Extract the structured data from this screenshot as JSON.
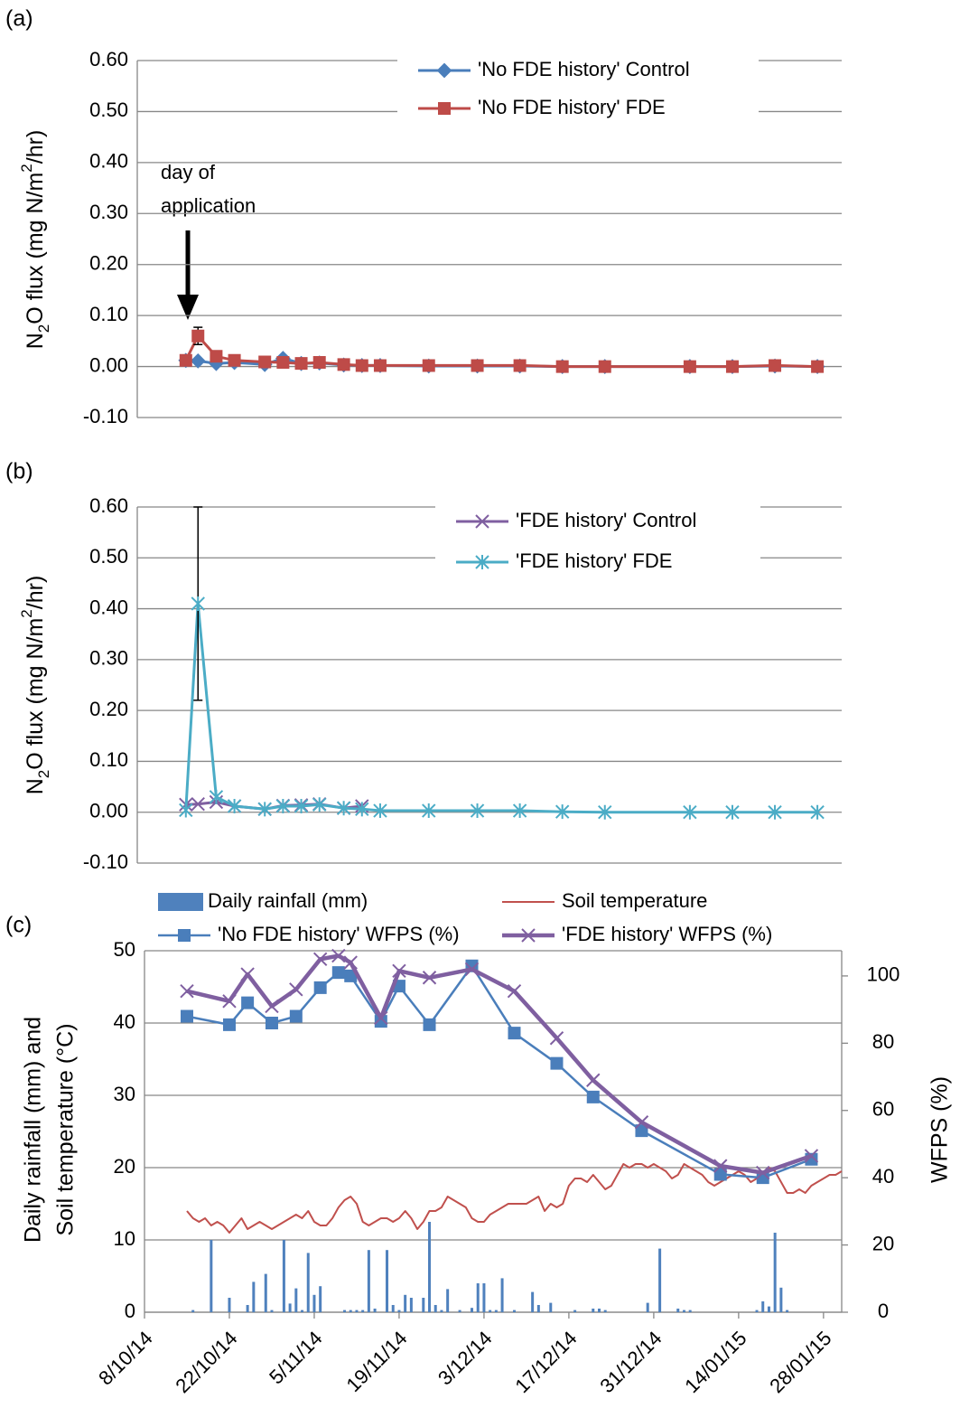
{
  "chart_data": [
    {
      "type": "line",
      "panel_label": "(a)",
      "ylabel": [
        "N",
        "2",
        "O flux  (mg N/m",
        "2",
        "/hr)"
      ],
      "annotation": [
        "day of",
        "application"
      ],
      "xlim": [
        "2014-10-07",
        "2015-01-31"
      ],
      "ylim": [
        -0.1,
        0.6
      ],
      "yticks": [
        {
          "value": -0.1,
          "label": "-0.10"
        },
        {
          "value": 0,
          "label": "0.00"
        },
        {
          "value": 0.1,
          "label": "0.10"
        },
        {
          "value": 0.2,
          "label": "0.20"
        },
        {
          "value": 0.3,
          "label": "0.30"
        },
        {
          "value": 0.4,
          "label": "0.40"
        },
        {
          "value": 0.5,
          "label": "0.50"
        },
        {
          "value": 0.6,
          "label": "0.60"
        }
      ],
      "grid": true,
      "legend": "upper right",
      "series": [
        {
          "name": "'No FDE history' Control",
          "color": "#4a7ebb",
          "marker": "diamond",
          "x": [
            "2014-10-15",
            "2014-10-17",
            "2014-10-20",
            "2014-10-23",
            "2014-10-28",
            "2014-10-31",
            "2014-11-03",
            "2014-11-06",
            "2014-11-10",
            "2014-11-13",
            "2014-11-16",
            "2014-11-24",
            "2014-12-02",
            "2014-12-09",
            "2014-12-16",
            "2014-12-23",
            "2015-01-06",
            "2015-01-13",
            "2015-01-20",
            "2015-01-27"
          ],
          "values": [
            0.012,
            0.011,
            0.006,
            0.008,
            0.004,
            0.016,
            0.006,
            0.007,
            0.003,
            0.002,
            0.002,
            0.001,
            0.001,
            0.001,
            0,
            0,
            0,
            0,
            0.001,
            0
          ]
        },
        {
          "name": "'No FDE history' FDE",
          "color": "#be4b48",
          "marker": "square",
          "x": [
            "2014-10-15",
            "2014-10-17",
            "2014-10-20",
            "2014-10-23",
            "2014-10-28",
            "2014-10-31",
            "2014-11-03",
            "2014-11-06",
            "2014-11-10",
            "2014-11-13",
            "2014-11-16",
            "2014-11-24",
            "2014-12-02",
            "2014-12-09",
            "2014-12-16",
            "2014-12-23",
            "2015-01-06",
            "2015-01-13",
            "2015-01-20",
            "2015-01-27"
          ],
          "values": [
            0.012,
            0.06,
            0.02,
            0.012,
            0.009,
            0.008,
            0.006,
            0.008,
            0.004,
            0.002,
            0.002,
            0.002,
            0.002,
            0.002,
            0,
            0,
            0,
            0,
            0.002,
            0
          ],
          "errors": [
            null,
            0.017,
            null,
            null,
            null,
            null,
            null,
            null,
            null,
            null,
            null,
            null,
            null,
            null,
            null,
            null,
            null,
            null,
            null,
            null
          ]
        }
      ]
    },
    {
      "type": "line",
      "panel_label": "(b)",
      "ylabel": [
        "N",
        "2",
        "O flux  (mg N/m",
        "2",
        "/hr)"
      ],
      "xlim": [
        "2014-10-07",
        "2015-01-31"
      ],
      "ylim": [
        -0.1,
        0.6
      ],
      "yticks": [
        {
          "value": -0.1,
          "label": "-0.10"
        },
        {
          "value": 0,
          "label": "0.00"
        },
        {
          "value": 0.1,
          "label": "0.10"
        },
        {
          "value": 0.2,
          "label": "0.20"
        },
        {
          "value": 0.3,
          "label": "0.30"
        },
        {
          "value": 0.4,
          "label": "0.40"
        },
        {
          "value": 0.5,
          "label": "0.50"
        },
        {
          "value": 0.6,
          "label": "0.60"
        }
      ],
      "grid": true,
      "legend": "upper right",
      "series": [
        {
          "name": "'FDE history' Control",
          "color": "#7f5fa0",
          "marker": "x",
          "x": [
            "2014-10-15",
            "2014-10-17",
            "2014-10-20",
            "2014-10-23",
            "2014-10-28",
            "2014-10-31",
            "2014-11-03",
            "2014-11-06",
            "2014-11-10",
            "2014-11-13",
            "2014-11-16",
            "2014-11-24",
            "2014-12-02",
            "2014-12-09",
            "2014-12-16",
            "2014-12-23",
            "2015-01-06",
            "2015-01-13",
            "2015-01-20",
            "2015-01-27"
          ],
          "values": [
            0.015,
            0.016,
            0.02,
            0.012,
            0.006,
            0.013,
            0.014,
            0.016,
            0.008,
            0.012,
            null,
            null,
            null,
            null,
            null,
            null,
            null,
            null,
            null,
            null
          ]
        },
        {
          "name": "'FDE history' FDE",
          "color": "#4bacc6",
          "marker": "star",
          "x": [
            "2014-10-15",
            "2014-10-17",
            "2014-10-20",
            "2014-10-23",
            "2014-10-28",
            "2014-10-31",
            "2014-11-03",
            "2014-11-06",
            "2014-11-10",
            "2014-11-13",
            "2014-11-16",
            "2014-11-24",
            "2014-12-02",
            "2014-12-09",
            "2014-12-16",
            "2014-12-23",
            "2015-01-06",
            "2015-01-13",
            "2015-01-20",
            "2015-01-27"
          ],
          "values": [
            0.004,
            0.41,
            0.03,
            0.012,
            0.006,
            0.012,
            0.012,
            0.015,
            0.008,
            0.006,
            0.003,
            0.003,
            0.003,
            0.003,
            0.001,
            0,
            0,
            0,
            0,
            0
          ],
          "errors": [
            null,
            0.19,
            null,
            null,
            null,
            null,
            null,
            null,
            null,
            null,
            null,
            null,
            null,
            null,
            null,
            null,
            null,
            null,
            null,
            null
          ]
        }
      ]
    },
    {
      "type": "combo",
      "panel_label": "(c)",
      "ylabel": [
        "Daily rainfall (mm) and",
        "Soil temperature (°C)"
      ],
      "y2label": "WFPS (%)",
      "xlim": [
        "2014-10-08",
        "2015-01-31"
      ],
      "xticks": [
        {
          "value": "2014-10-08",
          "label": "8/10/14"
        },
        {
          "value": "2014-10-22",
          "label": "22/10/14"
        },
        {
          "value": "2014-11-05",
          "label": "5/11/14"
        },
        {
          "value": "2014-11-19",
          "label": "19/11/14"
        },
        {
          "value": "2014-12-03",
          "label": "3/12/14"
        },
        {
          "value": "2014-12-17",
          "label": "17/12/14"
        },
        {
          "value": "2014-12-31",
          "label": "31/12/14"
        },
        {
          "value": "2015-01-14",
          "label": "14/01/15"
        },
        {
          "value": "2015-01-28",
          "label": "28/01/15"
        }
      ],
      "ylim": [
        0,
        50
      ],
      "yticks": [
        0,
        10,
        20,
        30,
        40,
        50
      ],
      "y2lim": [
        0,
        107.5
      ],
      "y2ticks": [
        0,
        20,
        40,
        60,
        80,
        100
      ],
      "grid": true,
      "legend": "top",
      "series": [
        {
          "name": "Daily rainfall (mm)",
          "type": "bar",
          "color": "#4f81bd",
          "x": [
            "2014-10-16",
            "2014-10-19",
            "2014-10-22",
            "2014-10-25",
            "2014-10-26",
            "2014-10-28",
            "2014-10-29",
            "2014-10-31",
            "2014-11-01",
            "2014-11-02",
            "2014-11-03",
            "2014-11-04",
            "2014-11-05",
            "2014-11-06",
            "2014-11-10",
            "2014-11-11",
            "2014-11-12",
            "2014-11-13",
            "2014-11-14",
            "2014-11-15",
            "2014-11-17",
            "2014-11-18",
            "2014-11-19",
            "2014-11-20",
            "2014-11-21",
            "2014-11-23",
            "2014-11-24",
            "2014-11-25",
            "2014-11-26",
            "2014-11-27",
            "2014-11-29",
            "2014-12-01",
            "2014-12-02",
            "2014-12-03",
            "2014-12-04",
            "2014-12-05",
            "2014-12-06",
            "2014-12-08",
            "2014-12-11",
            "2014-12-12",
            "2014-12-14",
            "2014-12-18",
            "2014-12-21",
            "2014-12-22",
            "2014-12-23",
            "2014-12-30",
            "2015-01-01",
            "2015-01-04",
            "2015-01-05",
            "2015-01-06",
            "2015-01-17",
            "2015-01-18",
            "2015-01-19",
            "2015-01-20",
            "2015-01-21",
            "2015-01-22"
          ],
          "values": [
            0.3,
            10,
            2,
            1,
            4.2,
            5.3,
            0.3,
            10,
            1.2,
            3.3,
            0.3,
            8.2,
            2.4,
            3.6,
            0.3,
            0.3,
            0.3,
            0.3,
            8.6,
            0.5,
            8.6,
            1,
            0.3,
            2.4,
            2,
            2,
            12.5,
            1,
            0.3,
            3.2,
            0.3,
            0.6,
            4,
            4,
            0.3,
            0.3,
            4.7,
            0.3,
            2.8,
            1,
            1.3,
            0.3,
            0.5,
            0.5,
            0.3,
            1.3,
            8.8,
            0.5,
            0.3,
            0.3,
            0.3,
            1.5,
            0.8,
            11,
            3.4,
            0.3
          ]
        },
        {
          "name": "Soil temperature",
          "type": "line",
          "color": "#c0504d",
          "x": [
            "2014-10-15",
            "2014-10-16",
            "2014-10-17",
            "2014-10-18",
            "2014-10-19",
            "2014-10-20",
            "2014-10-21",
            "2014-10-22",
            "2014-10-23",
            "2014-10-24",
            "2014-10-25",
            "2014-10-26",
            "2014-10-27",
            "2014-10-28",
            "2014-10-29",
            "2014-10-30",
            "2014-10-31",
            "2014-11-01",
            "2014-11-02",
            "2014-11-03",
            "2014-11-04",
            "2014-11-05",
            "2014-11-06",
            "2014-11-07",
            "2014-11-08",
            "2014-11-09",
            "2014-11-10",
            "2014-11-11",
            "2014-11-12",
            "2014-11-13",
            "2014-11-14",
            "2014-11-15",
            "2014-11-16",
            "2014-11-17",
            "2014-11-18",
            "2014-11-19",
            "2014-11-20",
            "2014-11-21",
            "2014-11-22",
            "2014-11-23",
            "2014-11-24",
            "2014-11-25",
            "2014-11-26",
            "2014-11-27",
            "2014-11-28",
            "2014-11-29",
            "2014-11-30",
            "2014-12-01",
            "2014-12-02",
            "2014-12-03",
            "2014-12-04",
            "2014-12-05",
            "2014-12-06",
            "2014-12-07",
            "2014-12-08",
            "2014-12-09",
            "2014-12-10",
            "2014-12-11",
            "2014-12-12",
            "2014-12-13",
            "2014-12-14",
            "2014-12-15",
            "2014-12-16",
            "2014-12-17",
            "2014-12-18",
            "2014-12-19",
            "2014-12-20",
            "2014-12-21",
            "2014-12-22",
            "2014-12-23",
            "2014-12-24",
            "2014-12-25",
            "2014-12-26",
            "2014-12-27",
            "2014-12-28",
            "2014-12-29",
            "2014-12-30",
            "2014-12-31",
            "2015-01-01",
            "2015-01-02",
            "2015-01-03",
            "2015-01-04",
            "2015-01-05",
            "2015-01-06",
            "2015-01-07",
            "2015-01-08",
            "2015-01-09",
            "2015-01-10",
            "2015-01-11",
            "2015-01-12",
            "2015-01-13",
            "2015-01-14",
            "2015-01-15",
            "2015-01-16",
            "2015-01-17",
            "2015-01-18",
            "2015-01-19",
            "2015-01-20",
            "2015-01-21",
            "2015-01-22",
            "2015-01-23",
            "2015-01-24",
            "2015-01-25",
            "2015-01-26",
            "2015-01-27",
            "2015-01-28",
            "2015-01-29",
            "2015-01-30",
            "2015-01-31"
          ],
          "values": [
            14,
            13,
            12.5,
            13,
            12,
            12.5,
            12,
            11,
            12,
            13,
            11.5,
            12,
            12.5,
            12,
            11.5,
            12,
            12.5,
            13,
            13.5,
            13,
            14,
            12.5,
            12,
            12,
            13,
            14.5,
            15.5,
            16,
            15,
            12.5,
            12,
            12.5,
            13,
            13,
            12.5,
            13,
            14,
            13,
            11.5,
            12.5,
            14,
            14,
            14.5,
            16,
            15.5,
            15,
            14.5,
            13,
            12.5,
            12.5,
            13.5,
            14,
            14.5,
            15,
            15,
            15,
            15,
            15.5,
            16,
            14,
            15,
            14.5,
            15,
            17.5,
            18.5,
            18.5,
            18,
            19,
            18,
            17,
            17.5,
            19,
            20.5,
            20,
            20.5,
            20.5,
            20,
            20.5,
            20,
            19.5,
            18.5,
            19,
            20.5,
            20,
            19.5,
            19,
            18,
            17.5,
            18,
            18.5,
            19,
            19.5,
            19,
            18,
            18.5,
            18.5,
            20,
            19.5,
            18,
            16.5,
            16.5,
            17,
            16.5,
            17.5,
            18,
            18.5,
            19,
            19,
            19.5
          ]
        },
        {
          "name": "'No FDE history' WFPS (%)",
          "type": "line",
          "axis": "y2",
          "color": "#4a7ebb",
          "marker": "square",
          "x": [
            "2014-10-15",
            "2014-10-22",
            "2014-10-25",
            "2014-10-29",
            "2014-11-02",
            "2014-11-06",
            "2014-11-09",
            "2014-11-11",
            "2014-11-16",
            "2014-11-19",
            "2014-11-24",
            "2014-12-01",
            "2014-12-08",
            "2014-12-15",
            "2014-12-21",
            "2014-12-29",
            "2015-01-11",
            "2015-01-18",
            "2015-01-26"
          ],
          "values": [
            88,
            85.5,
            92,
            86,
            88,
            96.5,
            101,
            100,
            86.5,
            97,
            85.5,
            103,
            83,
            74,
            64,
            54,
            41,
            40,
            45.5
          ]
        },
        {
          "name": "'FDE history' WFPS (%)",
          "type": "line",
          "axis": "y2",
          "color": "#7f5fa0",
          "marker": "x",
          "x": [
            "2014-10-15",
            "2014-10-22",
            "2014-10-25",
            "2014-10-29",
            "2014-11-02",
            "2014-11-06",
            "2014-11-09",
            "2014-11-11",
            "2014-11-16",
            "2014-11-19",
            "2014-11-24",
            "2014-12-01",
            "2014-12-08",
            "2014-12-15",
            "2014-12-21",
            "2014-12-29",
            "2015-01-11",
            "2015-01-18",
            "2015-01-26"
          ],
          "values": [
            95.5,
            92.5,
            100.5,
            91,
            96,
            105,
            106,
            104,
            87.5,
            101.5,
            99.5,
            102,
            95.5,
            81.5,
            69,
            56.5,
            43.5,
            41.5,
            46.5
          ]
        }
      ]
    }
  ]
}
